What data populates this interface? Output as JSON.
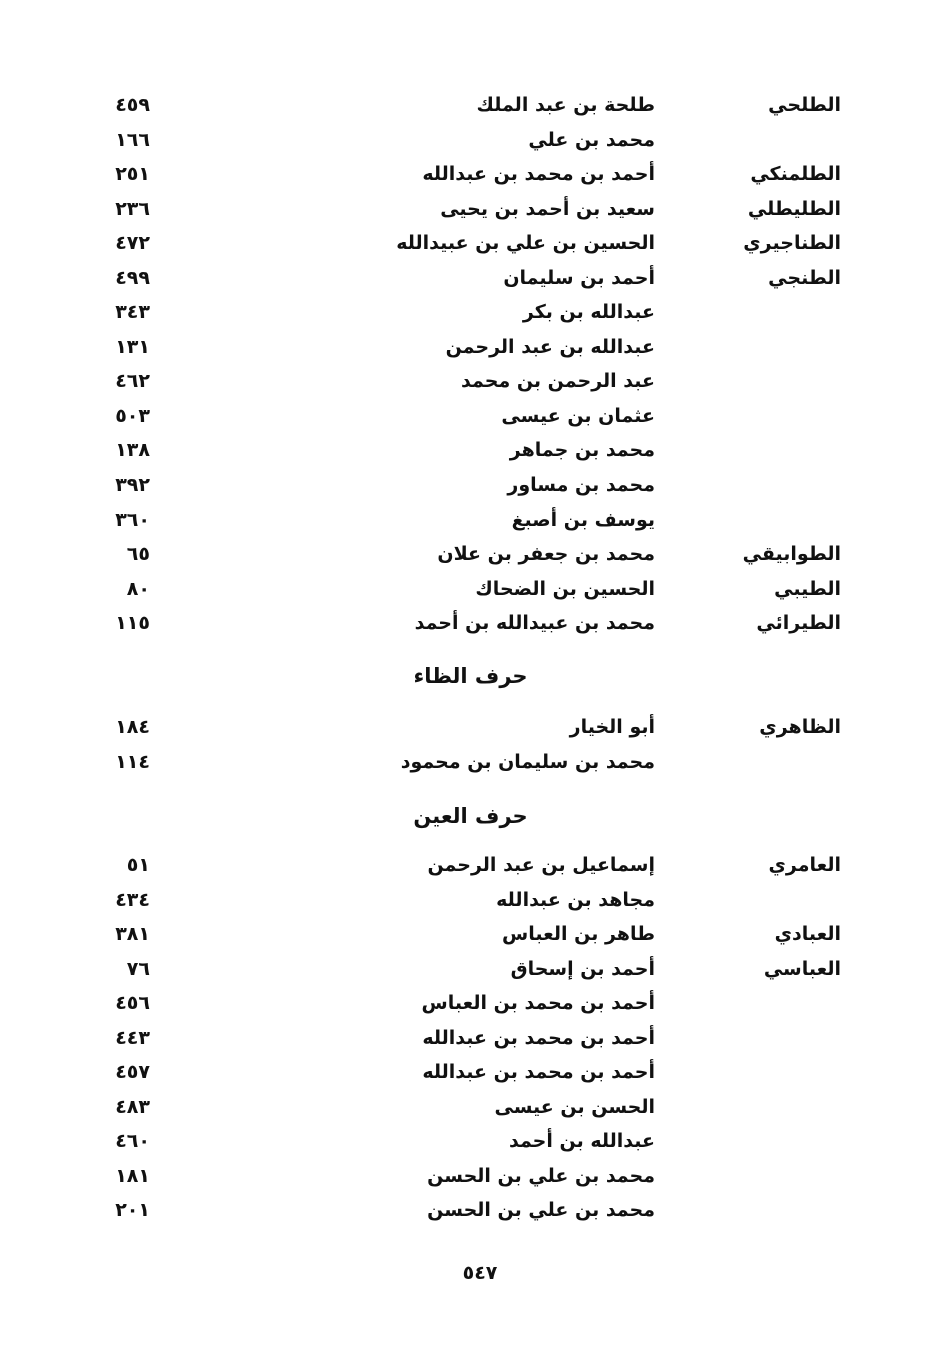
{
  "sections": [
    {
      "heading": "",
      "entries": [
        {
          "nisba": "الطلحي",
          "name": "طلحة بن عبد الملك",
          "page": "٤٥٩"
        },
        {
          "nisba": "",
          "name": "محمد بن علي",
          "page": "١٦٦"
        },
        {
          "nisba": "الطلمنكي",
          "name": "أحمد بن محمد بن عبدالله",
          "page": "٢٥١"
        },
        {
          "nisba": "الطليطلي",
          "name": "سعيد بن أحمد بن يحيى",
          "page": "٢٣٦"
        },
        {
          "nisba": "الطناجيري",
          "name": "الحسين بن علي بن عبيدالله",
          "page": "٤٧٢"
        },
        {
          "nisba": "الطنجي",
          "name": "أحمد بن سليمان",
          "page": "٤٩٩"
        },
        {
          "nisba": "",
          "name": "عبدالله بن بكر",
          "page": "٣٤٣"
        },
        {
          "nisba": "",
          "name": "عبدالله بن عبد الرحمن",
          "page": "١٣١"
        },
        {
          "nisba": "",
          "name": "عبد الرحمن بن محمد",
          "page": "٤٦٢"
        },
        {
          "nisba": "",
          "name": "عثمان بن عيسى",
          "page": "٥٠٣"
        },
        {
          "nisba": "",
          "name": "محمد بن جماهر",
          "page": "١٣٨"
        },
        {
          "nisba": "",
          "name": "محمد بن مساور",
          "page": "٣٩٢"
        },
        {
          "nisba": "",
          "name": "يوسف بن أصبغ",
          "page": "٣٦٠"
        },
        {
          "nisba": "الطوابيقي",
          "name": "محمد بن جعفر بن علان",
          "page": "٦٥"
        },
        {
          "nisba": "الطيبي",
          "name": "الحسين بن الضحاك",
          "page": "٨٠"
        },
        {
          "nisba": "الطيرائي",
          "name": "محمد بن عبيدالله بن أحمد",
          "page": "١١٥"
        }
      ]
    },
    {
      "heading": "حرف الظاء",
      "entries": [
        {
          "nisba": "الظاهري",
          "name": "أبو الخيار",
          "page": "١٨٤"
        },
        {
          "nisba": "",
          "name": "محمد بن سليمان بن محمود",
          "page": "١١٤"
        }
      ]
    },
    {
      "heading": "حرف العين",
      "entries": [
        {
          "nisba": "العامري",
          "name": "إسماعيل بن عبد الرحمن",
          "page": "٥١"
        },
        {
          "nisba": "",
          "name": "مجاهد بن عبدالله",
          "page": "٤٣٤"
        },
        {
          "nisba": "العبادي",
          "name": "طاهر بن العباس",
          "page": "٣٨١"
        },
        {
          "nisba": "العباسي",
          "name": "أحمد بن إسحاق",
          "page": "٧٦"
        },
        {
          "nisba": "",
          "name": "أحمد بن محمد بن العباس",
          "page": "٤٥٦"
        },
        {
          "nisba": "",
          "name": "أحمد بن محمد بن عبدالله",
          "page": "٤٤٣"
        },
        {
          "nisba": "",
          "name": "أحمد بن محمد بن عبدالله",
          "page": "٤٥٧"
        },
        {
          "nisba": "",
          "name": "الحسن بن عيسى",
          "page": "٤٨٣"
        },
        {
          "nisba": "",
          "name": "عبدالله بن أحمد",
          "page": "٤٦٠"
        },
        {
          "nisba": "",
          "name": "محمد بن علي بن الحسن",
          "page": "١٨١"
        },
        {
          "nisba": "",
          "name": "محمد بن علي بن الحسن",
          "page": "٢٠١"
        }
      ]
    }
  ],
  "page_number": "٥٤٧"
}
